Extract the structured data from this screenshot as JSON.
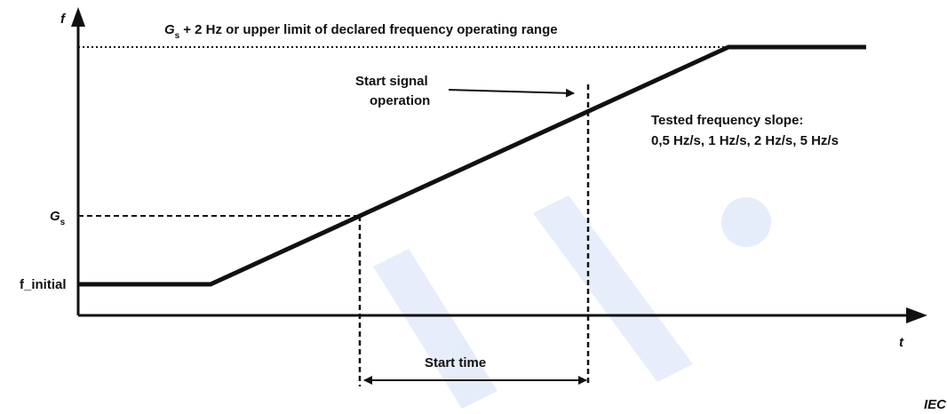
{
  "axes": {
    "y_label": "f",
    "x_label": "t"
  },
  "labels": {
    "upper_limit": {
      "symbol": "G",
      "subscript": "s",
      "text": "+ 2 Hz or upper limit of declared frequency operating range"
    },
    "gs": {
      "symbol": "G",
      "subscript": "s"
    },
    "f_initial": "f_initial",
    "start_signal": [
      "Start signal",
      "operation"
    ],
    "slope_note": [
      "Tested frequency slope:",
      "0,5 Hz/s, 1 Hz/s, 2 Hz/s, 5 Hz/s"
    ],
    "start_time": "Start time",
    "source": "IEC"
  }
}
